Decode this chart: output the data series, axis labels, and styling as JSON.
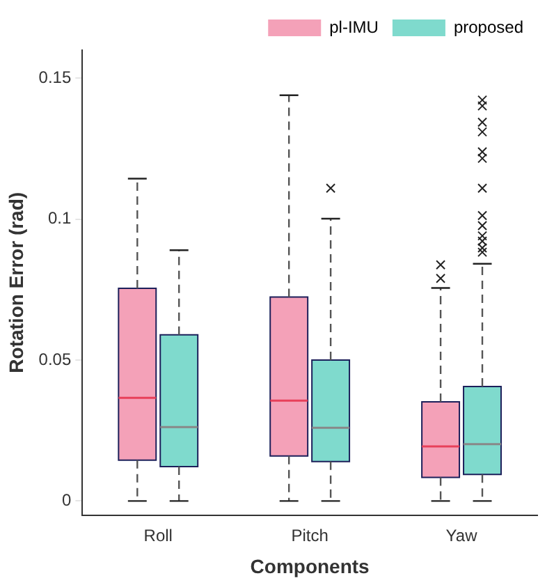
{
  "chart_data": {
    "type": "box",
    "xlabel": "Components",
    "ylabel": "Rotation Error (rad)",
    "categories": [
      "Roll",
      "Pitch",
      "Yaw"
    ],
    "ylim": [
      -0.005,
      0.16
    ],
    "yticks": [
      0,
      0.05,
      0.1,
      0.15
    ],
    "grid": false,
    "legend": "top right",
    "marker": "cross",
    "series": [
      {
        "name": "pl-IMU",
        "color": "#f4a1b8",
        "boxes": [
          {
            "low": 0,
            "q1": 0.0145,
            "median": 0.0366,
            "q3": 0.0755,
            "high": 0.1144
          },
          {
            "low": 0,
            "q1": 0.016,
            "median": 0.0356,
            "q3": 0.0724,
            "high": 0.144
          },
          {
            "low": 0,
            "q1": 0.0084,
            "median": 0.0194,
            "q3": 0.0352,
            "high": 0.0756,
            "outliers": [
              0.079,
              0.0838
            ]
          }
        ]
      },
      {
        "name": "proposed",
        "color": "#7fdacd",
        "boxes": [
          {
            "low": 0,
            "q1": 0.0122,
            "median": 0.0262,
            "q3": 0.059,
            "high": 0.089
          },
          {
            "low": 0,
            "q1": 0.014,
            "median": 0.026,
            "q3": 0.05,
            "high": 0.1002,
            "outliers": [
              0.111
            ]
          },
          {
            "low": 0,
            "q1": 0.0094,
            "median": 0.0202,
            "q3": 0.0406,
            "high": 0.0842,
            "outliers": [
              0.1423,
              0.1402,
              0.1344,
              0.131,
              0.1239,
              0.1216,
              0.111,
              0.1013,
              0.0977,
              0.0941,
              0.0922,
              0.0898,
              0.0883
            ]
          }
        ]
      }
    ]
  }
}
